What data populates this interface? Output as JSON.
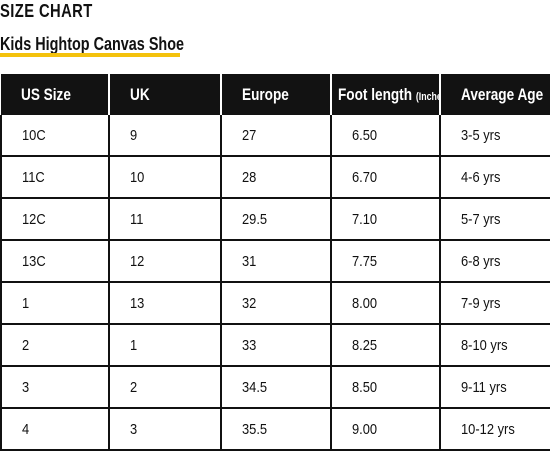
{
  "page": {
    "title": "SIZE CHART",
    "subtitle": "Kids Hightop Canvas Shoe"
  },
  "colors": {
    "accent": "#f4c20d",
    "header_bg": "#121212"
  },
  "table": {
    "headers": [
      "US Size",
      "UK",
      "Europe",
      "Foot length",
      "Average Age"
    ],
    "header_note": "(Inches)",
    "rows": [
      [
        "10C",
        "9",
        "27",
        "6.50",
        "3-5 yrs"
      ],
      [
        "11C",
        "10",
        "28",
        "6.70",
        "4-6 yrs"
      ],
      [
        "12C",
        "11",
        "29.5",
        "7.10",
        "5-7 yrs"
      ],
      [
        "13C",
        "12",
        "31",
        "7.75",
        "6-8 yrs"
      ],
      [
        "1",
        "13",
        "32",
        "8.00",
        "7-9 yrs"
      ],
      [
        "2",
        "1",
        "33",
        "8.25",
        "8-10 yrs"
      ],
      [
        "3",
        "2",
        "34.5",
        "8.50",
        "9-11 yrs"
      ],
      [
        "4",
        "3",
        "35.5",
        "9.00",
        "10-12 yrs"
      ]
    ]
  }
}
